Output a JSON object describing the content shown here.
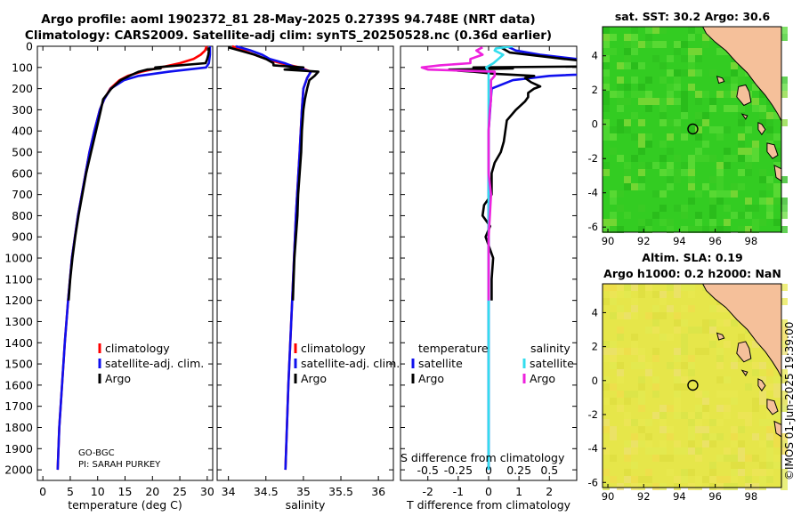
{
  "header": {
    "line1": "Argo profile: aoml 1902372_81 28-May-2025 0.2739S 94.748E (NRT data)",
    "line2": "Climatology: CARS2009. Satellite-adj clim: synTS_20250528.nc (0.36d earlier)"
  },
  "footer": {
    "stamp": "©IMOS 01-Jun-2025 19:39:00",
    "program": "GO-BGC",
    "pi": "PI: SARAH PURKEY"
  },
  "colors": {
    "climatology": "#ff0000",
    "satellite": "#1010ee",
    "argo": "#000000",
    "sat_salinity": "#33ddee",
    "argo_salinity": "#ee22dd",
    "land": "#f5c09a",
    "sst_green": "#33cc22",
    "sla_yellow": "#e6e64a"
  },
  "chart_data": [
    {
      "id": "temperature",
      "type": "line",
      "xlabel": "temperature (deg C)",
      "ylabel": "",
      "xlim": [
        -1,
        31
      ],
      "ylim": [
        2050,
        0
      ],
      "xticks": [
        0,
        5,
        10,
        15,
        20,
        25,
        30
      ],
      "yticks": [
        0,
        100,
        200,
        300,
        400,
        500,
        600,
        700,
        800,
        900,
        1000,
        1100,
        1200,
        1300,
        1400,
        1500,
        1600,
        1700,
        1800,
        1900,
        2000
      ],
      "legend": [
        "climatology",
        "satellite-adj. clim.",
        "Argo"
      ],
      "series": [
        {
          "name": "climatology",
          "color": "#ff0000",
          "depth": [
            0,
            20,
            40,
            60,
            80,
            100,
            120,
            140,
            160,
            200,
            250,
            300,
            400,
            500,
            600,
            700,
            800,
            1000,
            1200,
            1400,
            1600,
            1800,
            2000
          ],
          "values": [
            29.9,
            29.6,
            28.8,
            27.5,
            25.0,
            21.5,
            18.0,
            15.5,
            14.0,
            12.3,
            11.2,
            10.4,
            9.4,
            8.5,
            7.8,
            7.1,
            6.4,
            5.3,
            4.6,
            4.0,
            3.5,
            3.0,
            2.7
          ]
        },
        {
          "name": "satellite-adj. clim.",
          "color": "#1010ee",
          "depth": [
            0,
            20,
            40,
            60,
            80,
            100,
            120,
            140,
            160,
            200,
            250,
            300,
            400,
            500,
            600,
            700,
            800,
            1000,
            1200,
            1400,
            1600,
            1800,
            2000
          ],
          "values": [
            30.5,
            30.5,
            30.5,
            30.4,
            30.3,
            29.8,
            23.0,
            17.5,
            14.8,
            12.4,
            11.2,
            10.4,
            9.4,
            8.5,
            7.8,
            7.1,
            6.4,
            5.3,
            4.6,
            4.0,
            3.5,
            3.0,
            2.7
          ]
        },
        {
          "name": "Argo",
          "color": "#000000",
          "depth": [
            5,
            20,
            40,
            60,
            80,
            90,
            100,
            105,
            110,
            120,
            140,
            160,
            200,
            250,
            300,
            400,
            500,
            600,
            700,
            800,
            900,
            1000,
            1100,
            1200
          ],
          "values": [
            30.3,
            30.3,
            30.2,
            30.0,
            29.7,
            25.0,
            20.5,
            21.5,
            19.0,
            17.5,
            15.8,
            14.2,
            12.5,
            11.0,
            10.6,
            9.7,
            8.8,
            7.9,
            7.2,
            6.5,
            5.9,
            5.4,
            5.0,
            4.7
          ]
        }
      ]
    },
    {
      "id": "salinity",
      "type": "line",
      "xlabel": "salinity",
      "ylabel": "",
      "xlim": [
        33.85,
        36.2
      ],
      "ylim": [
        2050,
        0
      ],
      "xticks": [
        34,
        34.5,
        35,
        35.5,
        36
      ],
      "legend": [
        "climatology",
        "satellite-adj. clim.",
        "Argo"
      ],
      "series": [
        {
          "name": "climatology",
          "color": "#ff0000",
          "depth": [
            0,
            20,
            40,
            60,
            80,
            100,
            120,
            150,
            200,
            300,
            500,
            800,
            1200,
            1600,
            2000
          ],
          "values": [
            34.05,
            34.2,
            34.35,
            34.5,
            34.7,
            34.95,
            35.1,
            35.05,
            35.0,
            34.98,
            34.95,
            34.9,
            34.85,
            34.8,
            34.76
          ]
        },
        {
          "name": "satellite-adj. clim.",
          "color": "#1010ee",
          "depth": [
            0,
            20,
            40,
            60,
            80,
            100,
            120,
            150,
            200,
            300,
            500,
            800,
            1200,
            1600,
            2000
          ],
          "values": [
            34.1,
            34.3,
            34.45,
            34.55,
            34.75,
            34.9,
            35.1,
            35.05,
            35.0,
            34.98,
            34.95,
            34.9,
            34.85,
            34.8,
            34.76
          ]
        },
        {
          "name": "Argo",
          "color": "#000000",
          "depth": [
            5,
            20,
            40,
            60,
            80,
            90,
            100,
            110,
            120,
            140,
            160,
            200,
            250,
            300,
            400,
            500,
            600,
            700,
            800,
            900,
            1000,
            1100,
            1200
          ],
          "values": [
            34.0,
            34.15,
            34.35,
            34.5,
            34.6,
            34.6,
            35.0,
            34.75,
            35.2,
            35.15,
            35.08,
            35.05,
            35.02,
            35.0,
            34.98,
            34.97,
            34.95,
            34.93,
            34.92,
            34.9,
            34.88,
            34.87,
            34.86
          ]
        }
      ]
    },
    {
      "id": "difference",
      "type": "line",
      "xlabel": "T difference from climatology",
      "xlabel_top": "S difference from climatology",
      "xlim": [
        -2.9,
        2.9
      ],
      "ylim": [
        2050,
        0
      ],
      "xticks": [
        -2,
        -1,
        0,
        1,
        2
      ],
      "xticks_s": [
        "-0.5",
        "-0.25",
        "0",
        "0.25",
        "0.5"
      ],
      "legend_temperature": {
        "title": "temperature",
        "items": [
          "satellite",
          "Argo"
        ]
      },
      "legend_salinity": {
        "title": "salinity",
        "items": [
          "satellite",
          "Argo"
        ]
      },
      "series": [
        {
          "name": "temperature satellite",
          "color": "#1010ee",
          "depth": [
            0,
            20,
            40,
            60,
            80,
            100,
            110,
            120,
            140,
            160,
            200,
            400,
            800,
            1200,
            1600,
            2000
          ],
          "values": [
            0.6,
            0.9,
            1.7,
            2.9,
            5.3,
            8.3,
            6.0,
            5.0,
            2.0,
            0.8,
            0.1,
            0.0,
            0.0,
            0.0,
            0.0,
            0.0
          ]
        },
        {
          "name": "temperature Argo",
          "color": "#000000",
          "depth": [
            5,
            30,
            60,
            75,
            85,
            95,
            100,
            105,
            110,
            115,
            120,
            130,
            140,
            150,
            170,
            190,
            200,
            220,
            240,
            260,
            300,
            350,
            400,
            450,
            500,
            550,
            600,
            700,
            750,
            800,
            850,
            900,
            1000,
            1100,
            1200
          ],
          "values": [
            0.4,
            0.7,
            2.5,
            3.5,
            4.7,
            3.5,
            -0.5,
            0.8,
            -1.3,
            -1.0,
            -0.5,
            0.2,
            1.5,
            1.2,
            1.4,
            1.7,
            1.5,
            1.3,
            1.3,
            1.2,
            0.9,
            0.6,
            0.55,
            0.5,
            0.4,
            0.2,
            0.1,
            0.1,
            -0.15,
            -0.2,
            0.05,
            -0.1,
            0.15,
            0.1,
            0.1
          ]
        },
        {
          "name": "salinity satellite",
          "color": "#33ddee",
          "depth": [
            0,
            10,
            20,
            40,
            60,
            80,
            100,
            120,
            150,
            200,
            400,
            800,
            1200,
            1600,
            2000
          ],
          "values": [
            0.2,
            0.06,
            0.05,
            0.12,
            0.08,
            0.04,
            -0.02,
            0.0,
            0.0,
            0.0,
            0.0,
            0.0,
            0.0,
            0.0,
            0.0
          ]
        },
        {
          "name": "salinity Argo",
          "color": "#ee22dd",
          "depth": [
            5,
            20,
            40,
            60,
            80,
            90,
            100,
            110,
            120,
            140,
            160,
            200,
            250,
            300,
            400,
            500,
            600,
            700,
            800,
            900,
            1000,
            1100,
            1200
          ],
          "values": [
            -0.05,
            -0.1,
            -0.05,
            -0.15,
            -0.15,
            -0.4,
            -0.55,
            -0.5,
            0.05,
            0.05,
            0.02,
            0.02,
            0.02,
            0.01,
            0.0,
            0.0,
            0.0,
            0.02,
            0.01,
            0.0,
            0.0,
            0.0,
            0.0
          ]
        }
      ]
    },
    {
      "id": "sst_map",
      "type": "heatmap",
      "title": "sat. SST: 30.2 Argo: 30.6",
      "xlim": [
        89.7,
        99.7
      ],
      "ylim": [
        -6.3,
        5.7
      ],
      "xticks": [
        90,
        92,
        94,
        96,
        98
      ],
      "yticks": [
        -6,
        -4,
        -2,
        0,
        2,
        4
      ],
      "marker": {
        "lon": 94.748,
        "lat": -0.2739
      }
    },
    {
      "id": "sla_map",
      "type": "heatmap",
      "title_line1": "Altim. SLA: 0.19",
      "title_line2": "Argo h1000: 0.2 h2000: NaN",
      "xlim": [
        89.7,
        99.7
      ],
      "ylim": [
        -6.3,
        5.7
      ],
      "xticks": [
        90,
        92,
        94,
        96,
        98
      ],
      "yticks": [
        -6,
        -4,
        -2,
        0,
        2,
        4
      ],
      "marker": {
        "lon": 94.748,
        "lat": -0.2739
      }
    }
  ]
}
